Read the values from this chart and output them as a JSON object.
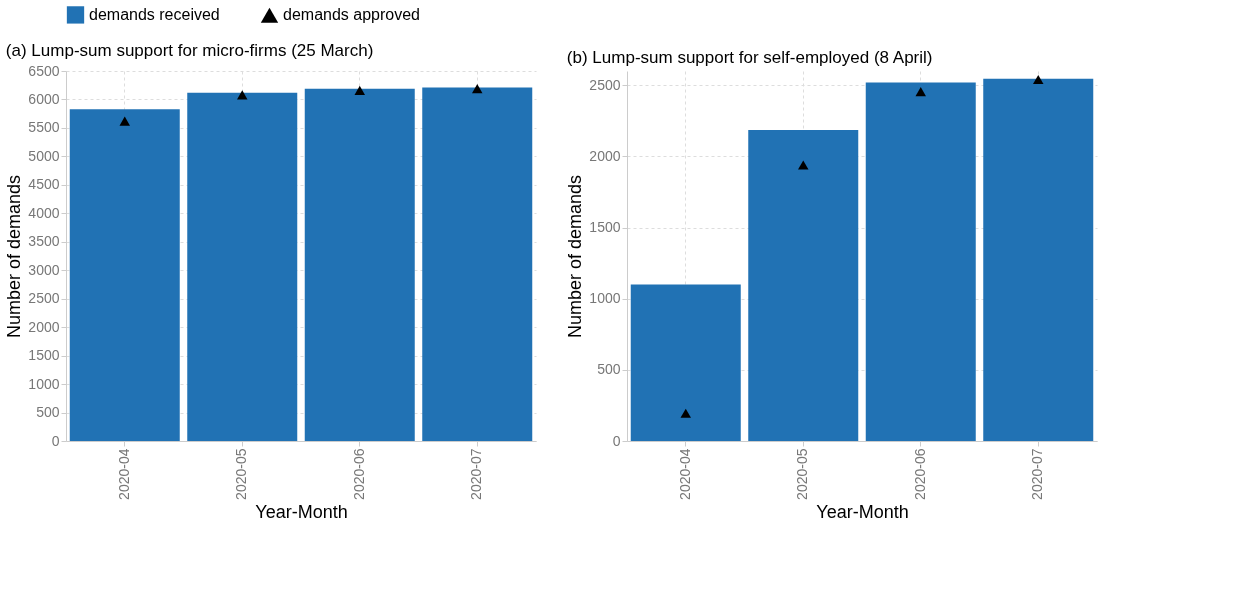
{
  "chart_data": [
    {
      "type": "bar",
      "title": "(a) Lump-sum support for micro-firms (25 March)",
      "xlabel": "Year-Month",
      "ylabel": "Number of demands",
      "categories": [
        "2020-04",
        "2020-05",
        "2020-06",
        "2020-07"
      ],
      "series": [
        {
          "name": "demands received",
          "type": "bar",
          "color": "#2172b4",
          "values": [
            5830,
            6120,
            6190,
            6210
          ]
        },
        {
          "name": "demands approved",
          "type": "scatter",
          "marker": "triangle",
          "color": "#000000",
          "values": [
            5620,
            6080,
            6160,
            6190
          ]
        }
      ],
      "ylim": [
        0,
        6500
      ],
      "yticks": [
        0,
        500,
        1000,
        1500,
        2000,
        2500,
        3000,
        3500,
        4000,
        4500,
        5000,
        5500,
        6000,
        6500
      ],
      "grid": true,
      "legend": "top"
    },
    {
      "type": "bar",
      "title": "(b) Lump-sum support for self-employed (8 April)",
      "xlabel": "Year-Month",
      "ylabel": "Number of demands",
      "categories": [
        "2020-04",
        "2020-05",
        "2020-06",
        "2020-07"
      ],
      "series": [
        {
          "name": "demands received",
          "type": "bar",
          "color": "#2172b4",
          "values": [
            1100,
            2185,
            2520,
            2545
          ]
        },
        {
          "name": "demands approved",
          "type": "scatter",
          "marker": "triangle",
          "color": "#000000",
          "values": [
            195,
            1940,
            2455,
            2540
          ]
        }
      ],
      "ylim": [
        0,
        2600
      ],
      "yticks": [
        0,
        500,
        1000,
        1500,
        2000,
        2500
      ],
      "grid": true
    }
  ]
}
